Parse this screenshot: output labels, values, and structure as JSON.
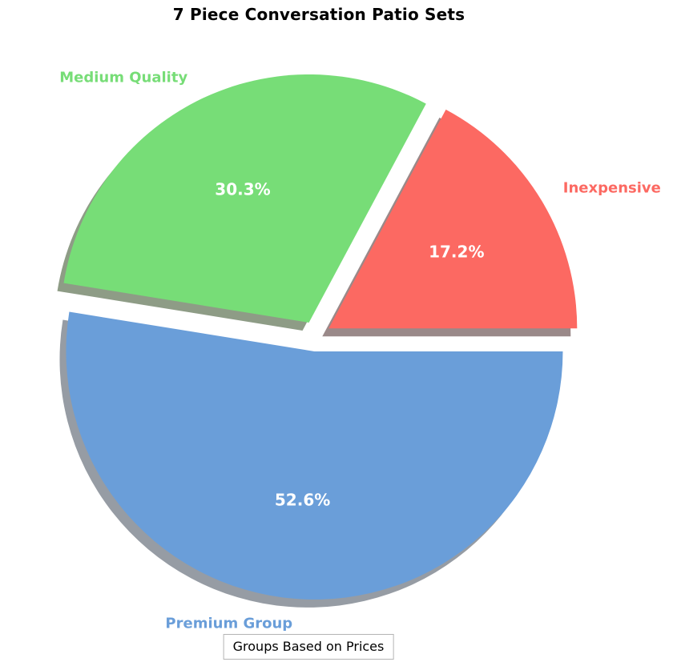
{
  "title": "7 Piece Conversation Patio Sets",
  "caption": "Groups Based on Prices",
  "chart_data": {
    "type": "pie",
    "title": "7 Piece Conversation Patio Sets",
    "legend_caption": "Groups Based on Prices",
    "legend_position": "bottom",
    "start_angle_deg": 0,
    "direction": "counterclockwise",
    "exploded": true,
    "shadow": true,
    "pct_text_color": "#ffffff",
    "slices": [
      {
        "label": "Inexpensive",
        "value": 17.2,
        "pct_label": "17.2%",
        "color": "#FC6962",
        "shadow_color": "#9A8989"
      },
      {
        "label": "Medium Quality",
        "value": 30.3,
        "pct_label": "30.3%",
        "color": "#77DD77",
        "shadow_color": "#8E9C86"
      },
      {
        "label": "Premium Group",
        "value": 52.6,
        "pct_label": "52.6%",
        "color": "#6A9ED9",
        "shadow_color": "#969CA4"
      }
    ]
  }
}
